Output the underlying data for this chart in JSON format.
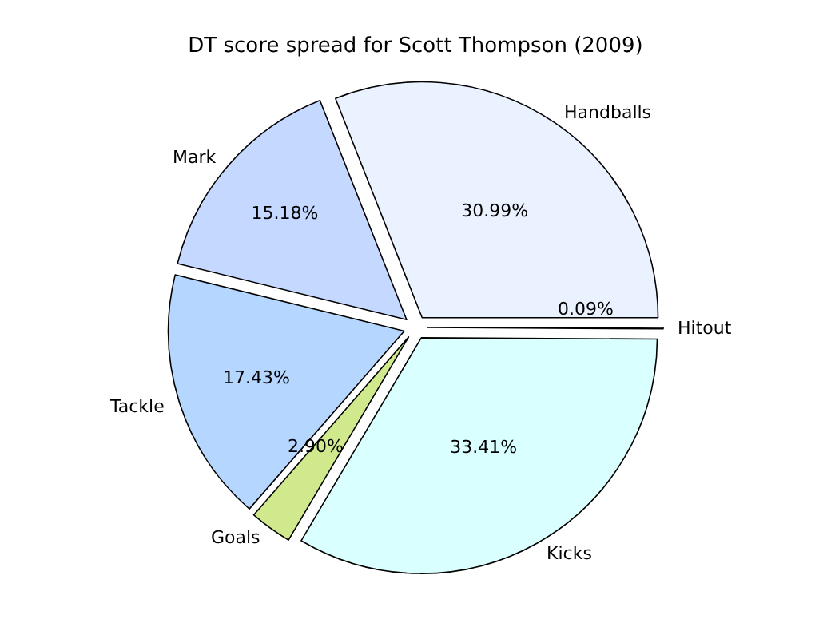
{
  "chart_data": {
    "type": "pie",
    "title": "DT score spread for Scott Thompson (2009)",
    "categories": [
      "Handballs",
      "Mark",
      "Tackle",
      "Goals",
      "Kicks",
      "Hitout"
    ],
    "values": [
      30.99,
      15.18,
      17.43,
      2.9,
      33.41,
      0.09
    ],
    "colors": [
      "#eaf1ff",
      "#c5d8ff",
      "#b4d6ff",
      "#cfe98c",
      "#d9ffff",
      "#f4f4f4"
    ],
    "value_labels": [
      "30.99%",
      "15.18%",
      "17.43%",
      "2.90%",
      "33.41%",
      "0.09%"
    ],
    "legend": false
  }
}
